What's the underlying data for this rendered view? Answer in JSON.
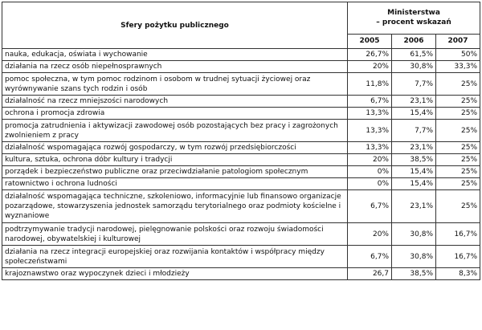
{
  "header": {
    "category_title": "Sfery pożytku publicznego",
    "ministry_title": "Ministerstwa",
    "ministry_subtitle": "– procent wskazań",
    "years": [
      "2005",
      "2006",
      "2007"
    ]
  },
  "rows": [
    {
      "label": "nauka, edukacja, oświata i wychowanie",
      "v2005": "26,7%",
      "v2006": "61,5%",
      "v2007": "50%"
    },
    {
      "label": "działania na rzecz osób niepełnosprawnych",
      "v2005": "20%",
      "v2006": "30,8%",
      "v2007": "33,3%"
    },
    {
      "label": "pomoc społeczna, w tym pomoc rodzinom i osobom w trudnej sytuacji życiowej oraz wyrównywanie szans tych rodzin i osób",
      "v2005": "11,8%",
      "v2006": "7,7%",
      "v2007": "25%"
    },
    {
      "label": "działalność na rzecz mniejszości narodowych",
      "v2005": "6,7%",
      "v2006": "23,1%",
      "v2007": "25%"
    },
    {
      "label": "ochrona i promocja zdrowia",
      "v2005": "13,3%",
      "v2006": "15,4%",
      "v2007": "25%"
    },
    {
      "label": "promocja zatrudnienia i aktywizacji zawodowej osób pozostających bez pracy i zagrożonych zwolnieniem z pracy",
      "v2005": "13,3%",
      "v2006": "7,7%",
      "v2007": "25%"
    },
    {
      "label": "działalność wspomagająca rozwój gospodarczy, w tym rozwój przedsiębiorczości",
      "v2005": "13,3%",
      "v2006": "23,1%",
      "v2007": "25%"
    },
    {
      "label": "kultura, sztuka, ochrona dóbr kultury i tradycji",
      "v2005": "20%",
      "v2006": "38,5%",
      "v2007": "25%"
    },
    {
      "label": "porządek i bezpieczeństwo publiczne oraz przeciwdziałanie patologiom społecznym",
      "v2005": "0%",
      "v2006": "15,4%",
      "v2007": "25%"
    },
    {
      "label": "ratownictwo i ochrona ludności",
      "v2005": "0%",
      "v2006": "15,4%",
      "v2007": "25%"
    },
    {
      "label": "działalność wspomagająca techniczne, szkoleniowo, informacyjnie lub finansowo organizacje pozarządowe, stowarzyszenia jednostek samorządu terytorialnego oraz podmioty kościelne i wyznaniowe",
      "v2005": "6,7%",
      "v2006": "23,1%",
      "v2007": "25%"
    },
    {
      "label": "podtrzymywanie tradycji narodowej, pielęgnowanie polskości oraz rozwoju świadomości narodowej, obywatelskiej i kulturowej",
      "v2005": "20%",
      "v2006": "30,8%",
      "v2007": "16,7%"
    },
    {
      "label": "działania na rzecz integracji europejskiej oraz rozwijania kontaktów i współpracy między społeczeństwami",
      "v2005": "6,7%",
      "v2006": "30,8%",
      "v2007": "16,7%"
    },
    {
      "label": "krajoznawstwo oraz wypoczynek dzieci i młodzieży",
      "v2005": "26,7",
      "v2006": "38,5%",
      "v2007": "8,3%"
    }
  ],
  "row_heights": [
    15,
    15,
    28,
    15,
    15,
    28,
    15,
    15,
    15,
    15,
    41,
    28,
    28,
    15
  ]
}
